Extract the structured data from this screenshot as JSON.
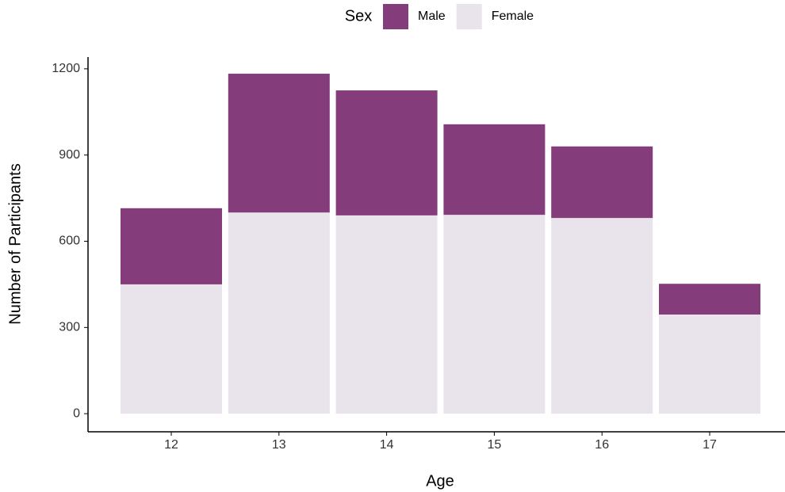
{
  "chart_data": {
    "type": "stacked_bar",
    "x_label": "Age",
    "y_label": "Number of Participants",
    "legend_title": "Sex",
    "categories": [
      "12",
      "13",
      "14",
      "15",
      "16",
      "17"
    ],
    "series": [
      {
        "name": "Male",
        "color": "#843d7a",
        "values": [
          265,
          483,
          435,
          315,
          249,
          107
        ]
      },
      {
        "name": "Female",
        "color": "#e9e3ec",
        "values": [
          450,
          700,
          690,
          692,
          681,
          345
        ]
      }
    ],
    "ylim": [
      -63,
      1241
    ],
    "yticks": [
      0,
      300,
      600,
      900,
      1200
    ],
    "legend": "top"
  }
}
